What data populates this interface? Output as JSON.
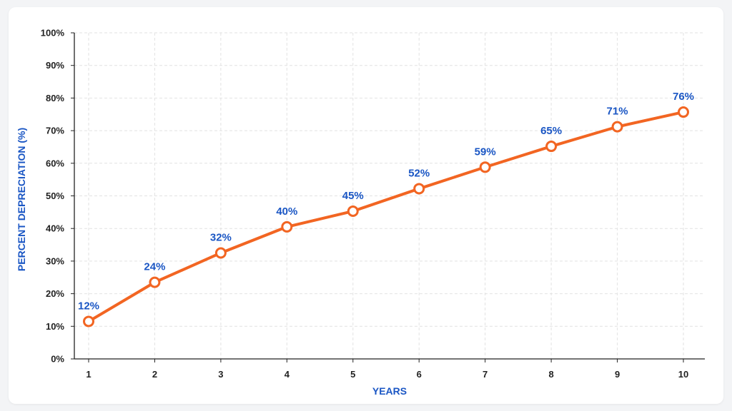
{
  "chart_data": {
    "type": "line",
    "title": "",
    "xlabel": "YEARS",
    "ylabel": "PERCENT DEPRECIATION (%)",
    "x": [
      1,
      2,
      3,
      4,
      5,
      6,
      7,
      8,
      9,
      10
    ],
    "series": [
      {
        "values": [
          11.5,
          23.5,
          32.5,
          40.5,
          45.3,
          52.2,
          58.8,
          65.2,
          71.2,
          75.7
        ],
        "labels": [
          "12%",
          "24%",
          "32%",
          "40%",
          "45%",
          "52%",
          "59%",
          "65%",
          "71%",
          "76%"
        ]
      }
    ],
    "xlim": [
      1,
      10
    ],
    "ylim": [
      0,
      100
    ],
    "yticks": [
      0,
      10,
      20,
      30,
      40,
      50,
      60,
      70,
      80,
      90,
      100
    ],
    "ytick_labels": [
      "0%",
      "10%",
      "20%",
      "30%",
      "40%",
      "50%",
      "60%",
      "70%",
      "80%",
      "90%",
      "100%"
    ],
    "xtick_labels": [
      "1",
      "2",
      "3",
      "4",
      "5",
      "6",
      "7",
      "8",
      "9",
      "10"
    ],
    "grid": true,
    "legend": "none",
    "colors": {
      "line": "#f26522",
      "marker_fill": "#ffffff",
      "data_label": "#1a56c4",
      "axis_title": "#1a56c4",
      "grid": "#e2e2e2",
      "axis": "#222222"
    }
  }
}
